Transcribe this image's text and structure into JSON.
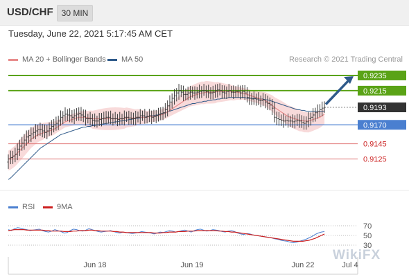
{
  "header": {
    "symbol": "USD/CHF",
    "timeframe": "30 MIN",
    "datetime": "Tuesday, June 22, 2021 5:17:45 AM CET",
    "credit": "Research © 2021 Trading Central",
    "watermark": "WikiFX"
  },
  "legend_main": [
    {
      "label": "MA 20 + Bollinger Bands",
      "color": "#e88c8c"
    },
    {
      "label": "MA 50",
      "color": "#2f5a8a"
    }
  ],
  "legend_rsi": [
    {
      "label": "RSI",
      "color": "#4a7fd0"
    },
    {
      "label": "9MA",
      "color": "#cc1f1f"
    }
  ],
  "colors": {
    "resistance": "#5aa316",
    "support_blue": "#4a7fd0",
    "support_red": "#e07575",
    "price_tag": "#333333",
    "ma50": "#2f5a8a",
    "ma20": "#e88c8c",
    "bollinger": "#f7d3d3",
    "arrow": "#2f5a8a",
    "candle": "#3a3a3a"
  },
  "chart_data": [
    {
      "type": "line",
      "name": "price",
      "ylim": [
        0.909,
        0.9245
      ],
      "x_ticks": [
        "Jun 18",
        "Jun 19",
        "Jun 22",
        "Jul 4"
      ],
      "levels": [
        {
          "value": 0.9235,
          "label": "0.9235",
          "kind": "resistance"
        },
        {
          "value": 0.9215,
          "label": "0.9215",
          "kind": "resistance"
        },
        {
          "value": 0.9193,
          "label": "0.9193",
          "kind": "last"
        },
        {
          "value": 0.917,
          "label": "0.9170",
          "kind": "support_blue"
        },
        {
          "value": 0.9145,
          "label": "0.9145",
          "kind": "support_red"
        },
        {
          "value": 0.9125,
          "label": "0.9125",
          "kind": "support_red"
        }
      ],
      "close": [
        0.9125,
        0.9127,
        0.9129,
        0.9131,
        0.9138,
        0.9142,
        0.9146,
        0.915,
        0.9154,
        0.9156,
        0.9158,
        0.916,
        0.9162,
        0.9164,
        0.9164,
        0.9162,
        0.916,
        0.9162,
        0.9165,
        0.9168,
        0.917,
        0.9172,
        0.9175,
        0.918,
        0.9182,
        0.9184,
        0.9183,
        0.9182,
        0.918,
        0.9182,
        0.9184,
        0.9185,
        0.9183,
        0.9181,
        0.9178,
        0.9178,
        0.9178,
        0.9176,
        0.9175,
        0.9175,
        0.9177,
        0.9178,
        0.9179,
        0.918,
        0.918,
        0.9178,
        0.9178,
        0.9178,
        0.9177,
        0.9178,
        0.9178,
        0.918,
        0.918,
        0.9179,
        0.9178,
        0.9178,
        0.918,
        0.918,
        0.9182,
        0.9182,
        0.918,
        0.9181,
        0.9182,
        0.918,
        0.9181,
        0.9182,
        0.9184,
        0.9185,
        0.9186,
        0.919,
        0.9195,
        0.92,
        0.9205,
        0.9208,
        0.9212,
        0.9215,
        0.9213,
        0.921,
        0.921,
        0.9212,
        0.9213,
        0.9212,
        0.9212,
        0.9213,
        0.9214,
        0.9215,
        0.9215,
        0.9214,
        0.9212,
        0.9212,
        0.9213,
        0.9215,
        0.9216,
        0.9215,
        0.9213,
        0.9212,
        0.9214,
        0.9215,
        0.9213,
        0.9213,
        0.9214,
        0.9214,
        0.9212,
        0.9214,
        0.9212,
        0.9206,
        0.9205,
        0.9204,
        0.9205,
        0.9204,
        0.9202,
        0.9202,
        0.9203,
        0.92,
        0.9198,
        0.9196,
        0.9192,
        0.918,
        0.9178,
        0.9177,
        0.9176,
        0.9175,
        0.9176,
        0.9175,
        0.9175,
        0.9174,
        0.9175,
        0.9176,
        0.9175,
        0.9173,
        0.9172,
        0.9174,
        0.9178,
        0.918,
        0.9183,
        0.9186,
        0.9188,
        0.919,
        0.9192,
        0.9193
      ],
      "ma50": [
        0.9098,
        0.91,
        0.9103,
        0.9106,
        0.9109,
        0.9112,
        0.9115,
        0.9118,
        0.9121,
        0.9124,
        0.9127,
        0.913,
        0.9133,
        0.9136,
        0.9139,
        0.9141,
        0.9143,
        0.9145,
        0.9147,
        0.9149,
        0.9151,
        0.9153,
        0.9155,
        0.9157,
        0.9158,
        0.9159,
        0.916,
        0.9161,
        0.9162,
        0.9163,
        0.9164,
        0.9165,
        0.9166,
        0.9167,
        0.9167,
        0.9168,
        0.9168,
        0.9169,
        0.9169,
        0.917,
        0.917,
        0.9171,
        0.9171,
        0.9172,
        0.9172,
        0.9173,
        0.9173,
        0.9174,
        0.9174,
        0.9175,
        0.9175,
        0.9176,
        0.9176,
        0.9177,
        0.9177,
        0.9178,
        0.9178,
        0.9179,
        0.9179,
        0.918,
        0.918,
        0.9181,
        0.9181,
        0.9182,
        0.9182,
        0.9183,
        0.9183,
        0.9184,
        0.9185,
        0.9186,
        0.9187,
        0.9188,
        0.9189,
        0.919,
        0.9191,
        0.9192,
        0.9193,
        0.9194,
        0.9195,
        0.9196,
        0.9197,
        0.9198,
        0.9198,
        0.9199,
        0.92,
        0.92,
        0.9201,
        0.9201,
        0.9202,
        0.9202,
        0.9203,
        0.9203,
        0.9204,
        0.9204,
        0.9205,
        0.9205,
        0.9205,
        0.9206,
        0.9206,
        0.9206,
        0.9206,
        0.9206,
        0.9206,
        0.9206,
        0.9206,
        0.9205,
        0.9205,
        0.9205,
        0.9205,
        0.9204,
        0.9204,
        0.9204,
        0.9204,
        0.9203,
        0.9203,
        0.9202,
        0.9201,
        0.92,
        0.9199,
        0.9198,
        0.9197,
        0.9196,
        0.9195,
        0.9194,
        0.9193,
        0.9192,
        0.9191,
        0.919,
        0.919,
        0.9189,
        0.9189,
        0.9188,
        0.9188,
        0.9188,
        0.9188,
        0.9188,
        0.9188,
        0.9188,
        0.9188,
        0.9188
      ],
      "ma20": [
        0.9125,
        0.9126,
        0.9128,
        0.913,
        0.9133,
        0.9136,
        0.9139,
        0.9142,
        0.9145,
        0.9148,
        0.9151,
        0.9153,
        0.9155,
        0.9157,
        0.9158,
        0.9159,
        0.916,
        0.9161,
        0.9162,
        0.9163,
        0.9164,
        0.9166,
        0.9168,
        0.917,
        0.9172,
        0.9174,
        0.9175,
        0.9176,
        0.9177,
        0.9178,
        0.9179,
        0.918,
        0.918,
        0.918,
        0.918,
        0.9179,
        0.9179,
        0.9178,
        0.9178,
        0.9178,
        0.9178,
        0.9178,
        0.9178,
        0.9178,
        0.9178,
        0.9178,
        0.9178,
        0.9178,
        0.9178,
        0.9178,
        0.9178,
        0.9178,
        0.9179,
        0.9179,
        0.9179,
        0.9179,
        0.9179,
        0.918,
        0.918,
        0.918,
        0.918,
        0.918,
        0.9181,
        0.9181,
        0.9181,
        0.9182,
        0.9182,
        0.9183,
        0.9184,
        0.9185,
        0.9187,
        0.9189,
        0.9191,
        0.9193,
        0.9195,
        0.9197,
        0.9199,
        0.9201,
        0.9203,
        0.9205,
        0.9207,
        0.9208,
        0.9209,
        0.921,
        0.9211,
        0.9212,
        0.9212,
        0.9213,
        0.9213,
        0.9213,
        0.9213,
        0.9213,
        0.9214,
        0.9214,
        0.9214,
        0.9214,
        0.9214,
        0.9214,
        0.9214,
        0.9213,
        0.9213,
        0.9213,
        0.9212,
        0.9212,
        0.9211,
        0.921,
        0.9209,
        0.9208,
        0.9207,
        0.9206,
        0.9205,
        0.9204,
        0.9203,
        0.9202,
        0.92,
        0.9198,
        0.9196,
        0.9193,
        0.9191,
        0.9189,
        0.9187,
        0.9185,
        0.9183,
        0.9181,
        0.918,
        0.9179,
        0.9178,
        0.9177,
        0.9176,
        0.9176,
        0.9175,
        0.9175,
        0.9175,
        0.9176,
        0.9177,
        0.9178,
        0.9179,
        0.918,
        0.9182,
        0.9184
      ]
    },
    {
      "type": "line",
      "name": "rsi",
      "ylim": [
        10,
        90
      ],
      "levels": [
        70,
        50,
        30
      ],
      "level_labels": [
        "70",
        "50",
        "30"
      ],
      "rsi": [
        62,
        60,
        64,
        66,
        65,
        63,
        62,
        60,
        61,
        62,
        63,
        60,
        58,
        57,
        59,
        62,
        60,
        58,
        55,
        56,
        60,
        63,
        62,
        60,
        59,
        61,
        64,
        62,
        60,
        58,
        57,
        58,
        59,
        60,
        58,
        56,
        55,
        57,
        56,
        55,
        54,
        55,
        56,
        58,
        57,
        56,
        55,
        53,
        55,
        57,
        56,
        58,
        60,
        59,
        57,
        58,
        60,
        61,
        59,
        57,
        60,
        62,
        63,
        61,
        59,
        60,
        62,
        61,
        60,
        58,
        57,
        59,
        60,
        58,
        55,
        53,
        52,
        54,
        53,
        51,
        50,
        49,
        48,
        47,
        46,
        45,
        43,
        42,
        40,
        39,
        38,
        36,
        35,
        36,
        38,
        40,
        42,
        45,
        48,
        52,
        55,
        57,
        58
      ],
      "ma9": [
        60,
        61,
        62,
        62,
        62,
        62,
        61,
        61,
        61,
        61,
        61,
        61,
        60,
        60,
        59,
        59,
        59,
        59,
        58,
        58,
        58,
        59,
        59,
        60,
        60,
        60,
        61,
        61,
        60,
        60,
        59,
        59,
        59,
        59,
        58,
        58,
        57,
        57,
        56,
        56,
        56,
        56,
        56,
        56,
        56,
        56,
        56,
        55,
        55,
        55,
        56,
        56,
        57,
        57,
        57,
        58,
        58,
        58,
        59,
        59,
        59,
        60,
        60,
        60,
        60,
        60,
        60,
        60,
        59,
        59,
        58,
        58,
        57,
        57,
        56,
        55,
        54,
        53,
        52,
        51,
        50,
        49,
        48,
        47,
        46,
        45,
        44,
        43,
        42,
        41,
        40,
        39,
        38,
        38,
        38,
        38,
        39,
        40,
        42,
        44,
        47,
        50,
        53
      ]
    }
  ]
}
